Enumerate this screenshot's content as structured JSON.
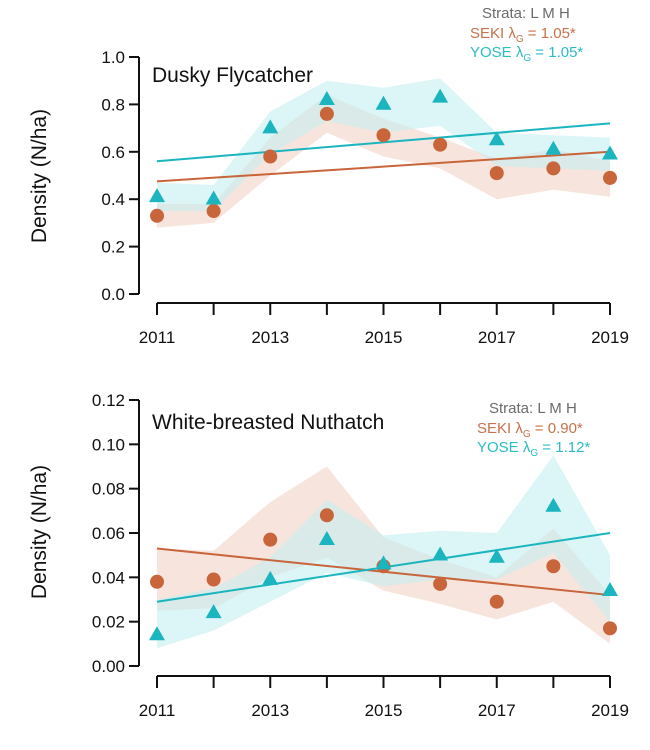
{
  "chart_data": [
    {
      "type": "line",
      "title": "Dusky Flycatcher",
      "xlabel": "",
      "ylabel": "Density (N/ha)",
      "x": [
        2011,
        2012,
        2013,
        2014,
        2015,
        2016,
        2017,
        2018,
        2019
      ],
      "xticks": [
        2011,
        2012,
        2013,
        2014,
        2015,
        2016,
        2017,
        2018,
        2019
      ],
      "xtick_labels": [
        "2011",
        "",
        "2013",
        "",
        "2015",
        "",
        "2017",
        "",
        "2019"
      ],
      "ylim": [
        0,
        1.0
      ],
      "yticks": [
        0.0,
        0.2,
        0.4,
        0.6,
        0.8,
        1.0
      ],
      "ytick_labels": [
        "0.0",
        "0.2",
        "0.4",
        "0.6",
        "0.8",
        "1.0"
      ],
      "grid": false,
      "legend": {
        "placement": "top-right",
        "header": "Strata: L M H",
        "entries": [
          {
            "prefix": "SEKI λ",
            "sub": "G",
            "suffix": " = 1.05*",
            "color": "#c8714a"
          },
          {
            "prefix": "YOSE λ",
            "sub": "G",
            "suffix": " = 1.05*",
            "color": "#2bbcc4"
          }
        ]
      },
      "series": [
        {
          "name": "SEKI",
          "marker": "circle",
          "color": "#c8653a",
          "band_color": "#f1d2c6",
          "values": [
            0.33,
            0.35,
            0.58,
            0.76,
            0.67,
            0.63,
            0.51,
            0.53,
            0.49
          ],
          "band_lower": [
            0.28,
            0.3,
            0.5,
            0.68,
            0.58,
            0.53,
            0.4,
            0.44,
            0.41
          ],
          "band_upper": [
            0.38,
            0.38,
            0.66,
            0.84,
            0.74,
            0.66,
            0.57,
            0.61,
            0.56
          ],
          "trend": [
            0.475,
            0.6
          ]
        },
        {
          "name": "YOSE",
          "marker": "triangle",
          "color": "#1bb5bf",
          "band_color": "#c4eef0",
          "values": [
            0.41,
            0.4,
            0.7,
            0.82,
            0.8,
            0.83,
            0.65,
            0.61,
            0.59
          ],
          "band_lower": [
            0.35,
            0.35,
            0.59,
            0.73,
            0.68,
            0.71,
            0.54,
            0.53,
            0.52
          ],
          "band_upper": [
            0.47,
            0.46,
            0.77,
            0.9,
            0.87,
            0.91,
            0.68,
            0.67,
            0.66
          ],
          "trend": [
            0.56,
            0.72
          ]
        }
      ]
    },
    {
      "type": "line",
      "title": "White-breasted Nuthatch",
      "xlabel": "",
      "ylabel": "Density (N/ha)",
      "x": [
        2011,
        2012,
        2013,
        2014,
        2015,
        2016,
        2017,
        2018,
        2019
      ],
      "xticks": [
        2011,
        2012,
        2013,
        2014,
        2015,
        2016,
        2017,
        2018,
        2019
      ],
      "xtick_labels": [
        "2011",
        "",
        "2013",
        "",
        "2015",
        "",
        "2017",
        "",
        "2019"
      ],
      "ylim": [
        0,
        0.12
      ],
      "yticks": [
        0.0,
        0.02,
        0.04,
        0.06,
        0.08,
        0.1,
        0.12
      ],
      "ytick_labels": [
        "0.00",
        "0.02",
        "0.04",
        "0.06",
        "0.08",
        "0.10",
        "0.12"
      ],
      "grid": false,
      "legend": {
        "placement": "top-right",
        "header": "Strata: L M H",
        "entries": [
          {
            "prefix": "SEKI λ",
            "sub": "G",
            "suffix": " = 0.90*",
            "color": "#c8714a"
          },
          {
            "prefix": "YOSE λ",
            "sub": "G",
            "suffix": " = 1.12*",
            "color": "#2bbcc4"
          }
        ]
      },
      "series": [
        {
          "name": "SEKI",
          "marker": "circle",
          "color": "#c8653a",
          "band_color": "#f1d2c6",
          "values": [
            0.038,
            0.039,
            0.057,
            0.068,
            0.045,
            0.037,
            0.029,
            0.045,
            0.017
          ],
          "band_lower": [
            0.025,
            0.026,
            0.04,
            0.049,
            0.034,
            0.028,
            0.021,
            0.029,
            0.01
          ],
          "band_upper": [
            0.053,
            0.052,
            0.074,
            0.09,
            0.058,
            0.048,
            0.04,
            0.062,
            0.032
          ],
          "trend": [
            0.053,
            0.032
          ]
        },
        {
          "name": "YOSE",
          "marker": "triangle",
          "color": "#1bb5bf",
          "band_color": "#c4eef0",
          "values": [
            0.014,
            0.024,
            0.039,
            0.057,
            0.046,
            0.05,
            0.049,
            0.072,
            0.034
          ],
          "band_lower": [
            0.008,
            0.016,
            0.029,
            0.042,
            0.036,
            0.039,
            0.039,
            0.051,
            0.02
          ],
          "band_upper": [
            0.03,
            0.035,
            0.049,
            0.075,
            0.059,
            0.061,
            0.06,
            0.095,
            0.05
          ],
          "trend": [
            0.029,
            0.06
          ]
        }
      ]
    }
  ]
}
